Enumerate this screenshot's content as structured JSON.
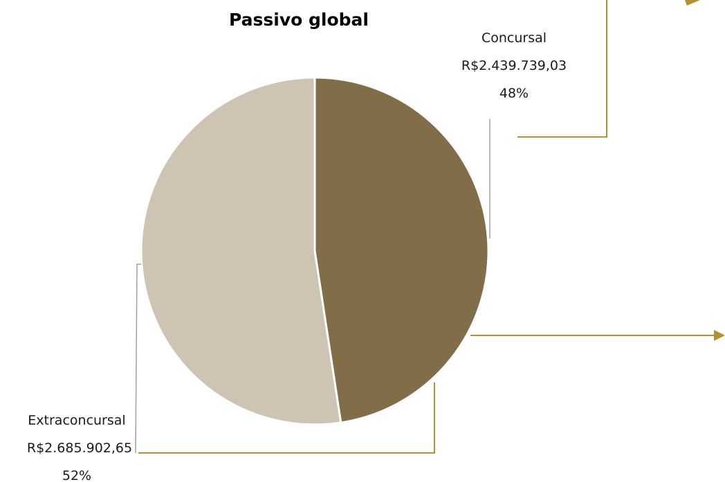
{
  "chart_data": {
    "type": "pie",
    "title": "Passivo global",
    "slices": [
      {
        "name": "Concursal",
        "value_label": "R$2.439.739,03",
        "percent_label": "48%",
        "value": 2439739.03,
        "color": "#816d47"
      },
      {
        "name": "Extraconcursal",
        "value_label": "R$2.685.902,65",
        "percent_label": "52%",
        "value": 2685902.65,
        "color": "#cdc4b4"
      }
    ]
  },
  "colors": {
    "accent_line": "#b8912f",
    "leader_line": "#a0a0a0",
    "slice_border": "#ffffff"
  }
}
